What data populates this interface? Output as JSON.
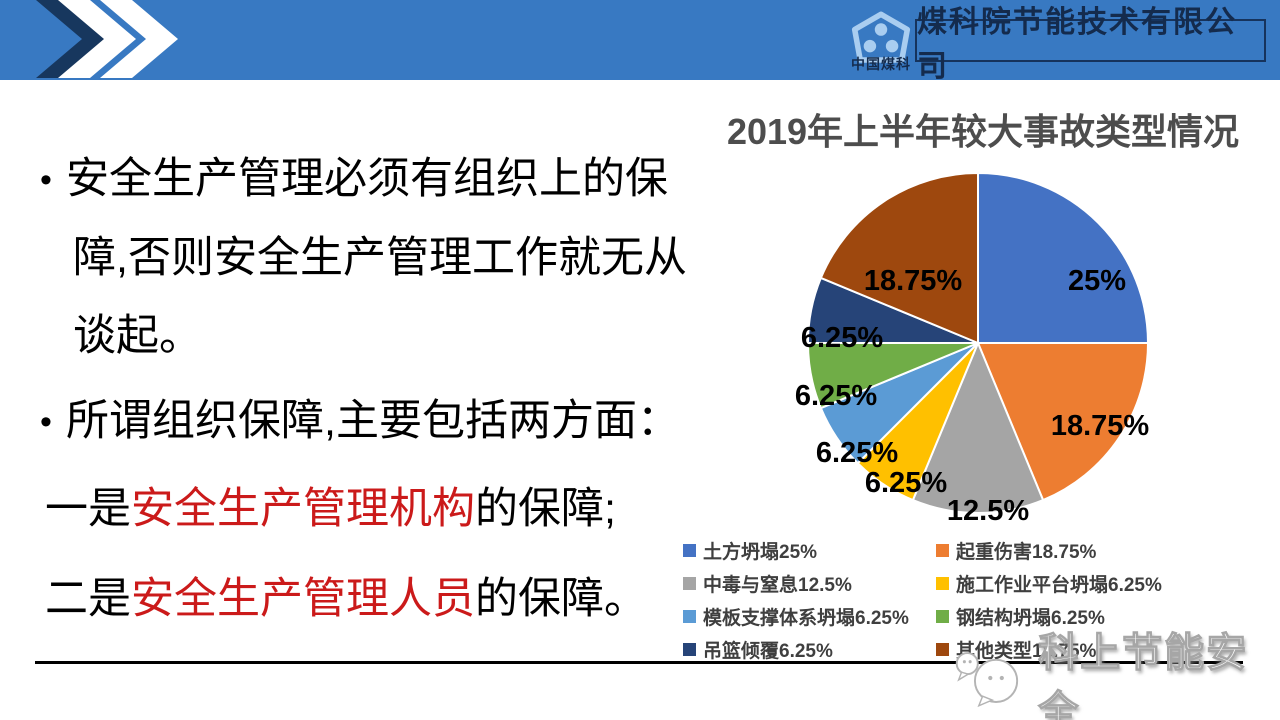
{
  "slide": {
    "header": {
      "company_name": "煤科院节能技术有限公司",
      "logo_caption": "中国煤科",
      "bar_color": "#3879C2",
      "accent_navy": "#17375E"
    },
    "body": {
      "bullet_char": "•",
      "paragraph1_lines": [
        "安全生产管理必须有组织上的保",
        "障,否则安全生产管理工作就无从",
        "谈起。"
      ],
      "paragraph2": "所谓组织保障,主要包括两方面：",
      "statement1": {
        "prefix": "一是",
        "highlight": "安全生产管理机构",
        "suffix": "的保障;"
      },
      "statement2": {
        "prefix": "二是",
        "highlight": "安全生产管理人员",
        "suffix": "的保障。"
      },
      "highlight_color": "#CB1A1A"
    },
    "watermark": {
      "text": "科上节能安全"
    }
  },
  "chart_data": {
    "type": "pie",
    "title": "2019年上半年较大事故类型情况",
    "start_angle_deg": 0,
    "direction": "clockwise",
    "legend_position": "bottom",
    "legend_columns": 2,
    "slices": [
      {
        "label": "土方坍塌",
        "pct": 25,
        "pct_label": "25%",
        "color": "#4472C4",
        "label_offset": [
          119,
          -63
        ]
      },
      {
        "label": "起重伤害",
        "pct": 18.75,
        "pct_label": "18.75%",
        "color": "#ED7D31",
        "label_offset": [
          122,
          82
        ]
      },
      {
        "label": "中毒与窒息",
        "pct": 12.5,
        "pct_label": "12.5%",
        "color": "#A5A5A5",
        "label_offset": [
          10,
          167
        ]
      },
      {
        "label": "施工作业平台坍塌",
        "pct": 6.25,
        "pct_label": "6.25%",
        "color": "#FFC000",
        "label_offset": [
          -72,
          139
        ]
      },
      {
        "label": "模板支撑体系坍塌",
        "pct": 6.25,
        "pct_label": "6.25%",
        "color": "#5B9BD5",
        "label_offset": [
          -121,
          109
        ]
      },
      {
        "label": "钢结构坍塌",
        "pct": 6.25,
        "pct_label": "6.25%",
        "color": "#70AD47",
        "label_offset": [
          -142,
          52
        ]
      },
      {
        "label": "吊篮倾覆",
        "pct": 6.25,
        "pct_label": "6.25%",
        "color": "#264478",
        "label_offset": [
          -136,
          -6
        ]
      },
      {
        "label": "其他类型",
        "pct": 18.75,
        "pct_label": "18.75%",
        "color": "#9E480E",
        "label_offset": [
          -65,
          -63
        ]
      }
    ]
  }
}
